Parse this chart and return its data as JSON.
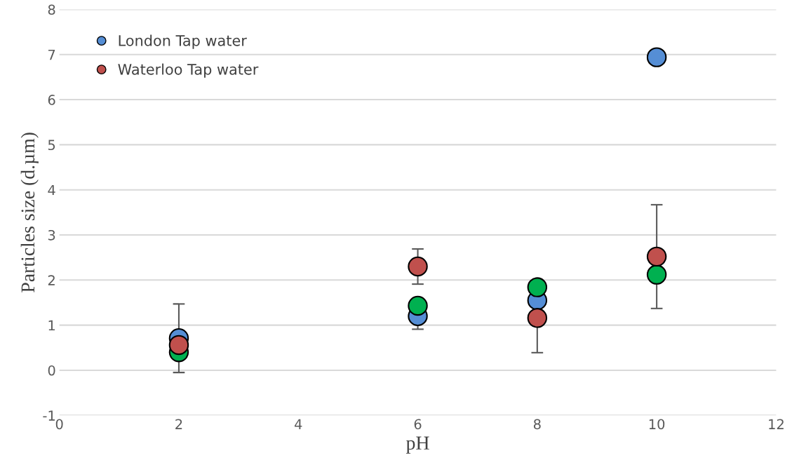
{
  "chart_data": {
    "type": "scatter",
    "xlabel": "pH",
    "ylabel": "Particles size (d.µm)",
    "x": [
      2,
      6,
      8,
      10
    ],
    "series": [
      {
        "name": "London Tap water",
        "color": "#558ed5",
        "values": [
          0.71,
          1.2,
          1.55,
          6.94
        ],
        "errors": [
          0.76,
          0.29,
          null,
          null
        ]
      },
      {
        "color": "#00b050",
        "values": [
          0.4,
          1.43,
          1.84,
          2.12
        ]
      },
      {
        "name": "Waterloo Tap water",
        "color": "#c0504d",
        "values": [
          0.56,
          2.3,
          1.16,
          2.52
        ],
        "errors": [
          null,
          0.39,
          0.77,
          1.15
        ]
      }
    ],
    "xlim": [
      0,
      12
    ],
    "xticks": [
      0,
      2,
      4,
      6,
      8,
      10,
      12
    ],
    "ylim": [
      -1,
      8
    ],
    "yticks": [
      -1,
      0,
      1,
      2,
      3,
      4,
      5,
      6,
      7,
      8
    ],
    "grid": "y",
    "legend": "top left",
    "marker": "circle"
  }
}
